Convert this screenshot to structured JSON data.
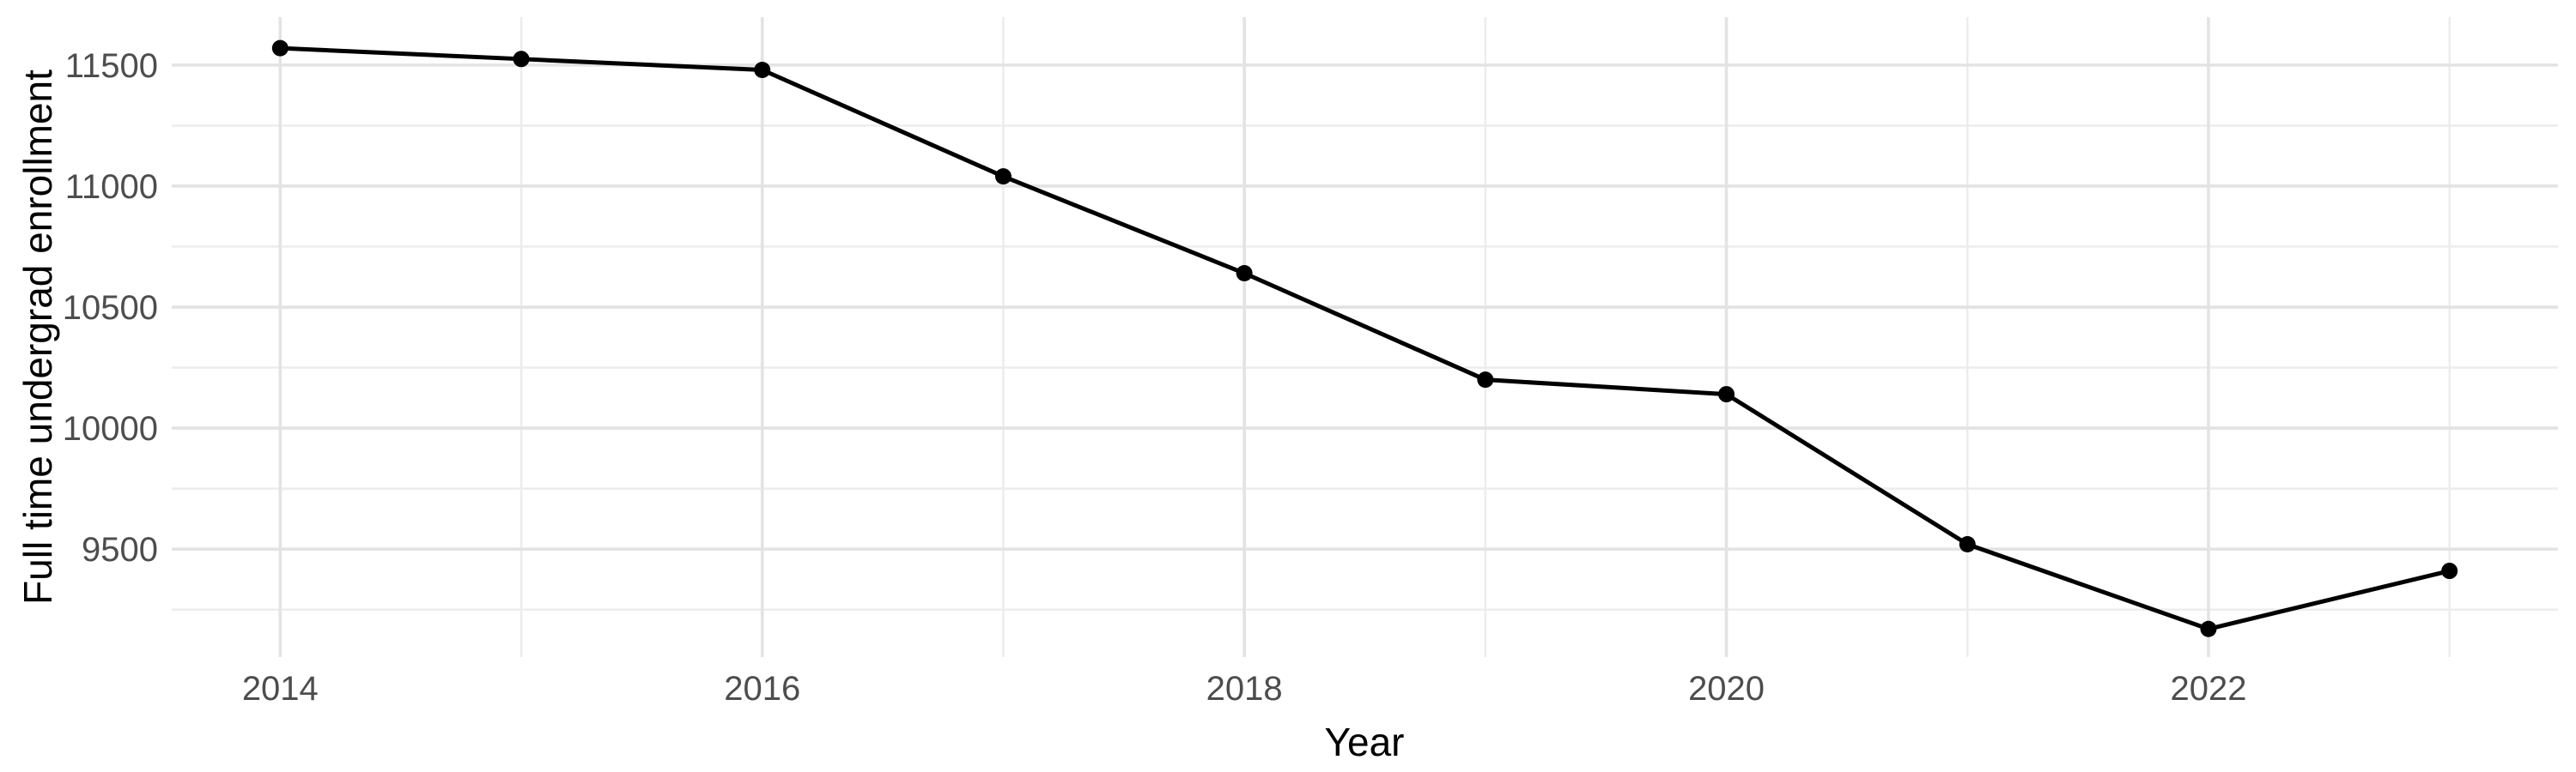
{
  "figure": {
    "background": "#FFFFFF",
    "kind": "ggplot-style line chart, minimal theme, no legend, no title"
  },
  "chart_data": {
    "type": "line",
    "title": "",
    "xlabel": "Year",
    "ylabel": "Full time undergrad enrollment",
    "x": [
      2014,
      2015,
      2016,
      2017,
      2018,
      2019,
      2020,
      2021,
      2022,
      2023
    ],
    "values": [
      11570,
      11525,
      11480,
      11040,
      10640,
      10200,
      10140,
      9520,
      9170,
      9410
    ],
    "xlim": [
      2013.55,
      2023.45
    ],
    "ylim": [
      9054,
      11698
    ],
    "x_major_ticks": [
      2014,
      2016,
      2018,
      2020,
      2022
    ],
    "x_minor_ticks": [
      2015,
      2017,
      2019,
      2021,
      2023
    ],
    "y_major_ticks": [
      9500,
      10000,
      10500,
      11000,
      11500
    ],
    "y_minor_ticks": [
      9250,
      9750,
      10250,
      10750,
      11250
    ],
    "grid": "on",
    "legend": "none",
    "colors": {
      "line": "#000000",
      "point": "#000000",
      "major_grid": "#E3E3E3",
      "minor_grid": "#ECECEC",
      "tick_label": "#4D4D4D",
      "axis_title": "#000000"
    }
  }
}
